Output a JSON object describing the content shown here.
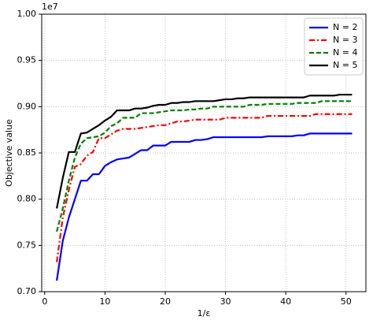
{
  "chart_data": {
    "type": "line",
    "xlabel": "1/ε",
    "ylabel": "Objective value",
    "y_offset_label": "1e7",
    "x": [
      2,
      3,
      4,
      5,
      6,
      7,
      8,
      9,
      10,
      11,
      12,
      13,
      14,
      15,
      16,
      17,
      18,
      19,
      20,
      21,
      22,
      23,
      24,
      25,
      26,
      27,
      28,
      29,
      30,
      31,
      32,
      33,
      34,
      35,
      36,
      37,
      38,
      39,
      40,
      41,
      42,
      43,
      44,
      45,
      46,
      47,
      48,
      49,
      50,
      51
    ],
    "series": [
      {
        "name": "N = 2",
        "color": "#0000ff",
        "linestyle": "solid",
        "values": [
          0.712,
          0.755,
          0.78,
          0.8,
          0.82,
          0.82,
          0.827,
          0.827,
          0.836,
          0.84,
          0.843,
          0.844,
          0.845,
          0.849,
          0.853,
          0.853,
          0.858,
          0.858,
          0.858,
          0.862,
          0.862,
          0.862,
          0.862,
          0.864,
          0.864,
          0.865,
          0.867,
          0.867,
          0.867,
          0.867,
          0.867,
          0.867,
          0.867,
          0.867,
          0.867,
          0.868,
          0.868,
          0.868,
          0.868,
          0.868,
          0.869,
          0.869,
          0.871,
          0.871,
          0.871,
          0.871,
          0.871,
          0.871,
          0.871,
          0.871
        ]
      },
      {
        "name": "N = 3",
        "color": "#ff0000",
        "linestyle": "dashdot",
        "values": [
          0.732,
          0.78,
          0.81,
          0.835,
          0.838,
          0.847,
          0.851,
          0.866,
          0.866,
          0.87,
          0.874,
          0.876,
          0.876,
          0.876,
          0.877,
          0.878,
          0.879,
          0.88,
          0.88,
          0.882,
          0.884,
          0.884,
          0.885,
          0.886,
          0.886,
          0.886,
          0.886,
          0.886,
          0.888,
          0.888,
          0.888,
          0.888,
          0.888,
          0.888,
          0.888,
          0.89,
          0.89,
          0.89,
          0.89,
          0.89,
          0.89,
          0.89,
          0.89,
          0.892,
          0.892,
          0.892,
          0.892,
          0.892,
          0.892,
          0.892
        ]
      },
      {
        "name": "N = 4",
        "color": "#008000",
        "linestyle": "dashed",
        "values": [
          0.765,
          0.79,
          0.82,
          0.845,
          0.86,
          0.866,
          0.867,
          0.868,
          0.872,
          0.879,
          0.882,
          0.888,
          0.888,
          0.888,
          0.893,
          0.893,
          0.893,
          0.894,
          0.895,
          0.896,
          0.896,
          0.896,
          0.897,
          0.897,
          0.898,
          0.898,
          0.9,
          0.9,
          0.9,
          0.9,
          0.9,
          0.9,
          0.902,
          0.902,
          0.902,
          0.903,
          0.903,
          0.903,
          0.903,
          0.903,
          0.904,
          0.904,
          0.904,
          0.904,
          0.906,
          0.906,
          0.906,
          0.906,
          0.906,
          0.906
        ]
      },
      {
        "name": "N = 5",
        "color": "#000000",
        "linestyle": "solid",
        "values": [
          0.79,
          0.823,
          0.851,
          0.851,
          0.871,
          0.872,
          0.876,
          0.88,
          0.885,
          0.889,
          0.896,
          0.896,
          0.896,
          0.898,
          0.898,
          0.899,
          0.901,
          0.902,
          0.902,
          0.904,
          0.904,
          0.905,
          0.905,
          0.906,
          0.906,
          0.906,
          0.906,
          0.907,
          0.908,
          0.908,
          0.909,
          0.909,
          0.91,
          0.91,
          0.91,
          0.91,
          0.91,
          0.91,
          0.91,
          0.91,
          0.91,
          0.91,
          0.912,
          0.912,
          0.912,
          0.912,
          0.912,
          0.913,
          0.913,
          0.913
        ]
      }
    ],
    "xlim": [
      -0.5,
      53.3
    ],
    "xticks": [
      0,
      10,
      20,
      30,
      40,
      50
    ],
    "ylim": [
      0.7,
      1.0
    ],
    "yticks": [
      {
        "value": 0.7,
        "label": "0.70"
      },
      {
        "value": 0.75,
        "label": "0.75"
      },
      {
        "value": 0.8,
        "label": "0.80"
      },
      {
        "value": 0.85,
        "label": "0.85"
      },
      {
        "value": 0.9,
        "label": "0.90"
      },
      {
        "value": 0.95,
        "label": "0.95"
      },
      {
        "value": 1.0,
        "label": "1.00"
      }
    ],
    "grid": true,
    "legend": "upper right"
  }
}
